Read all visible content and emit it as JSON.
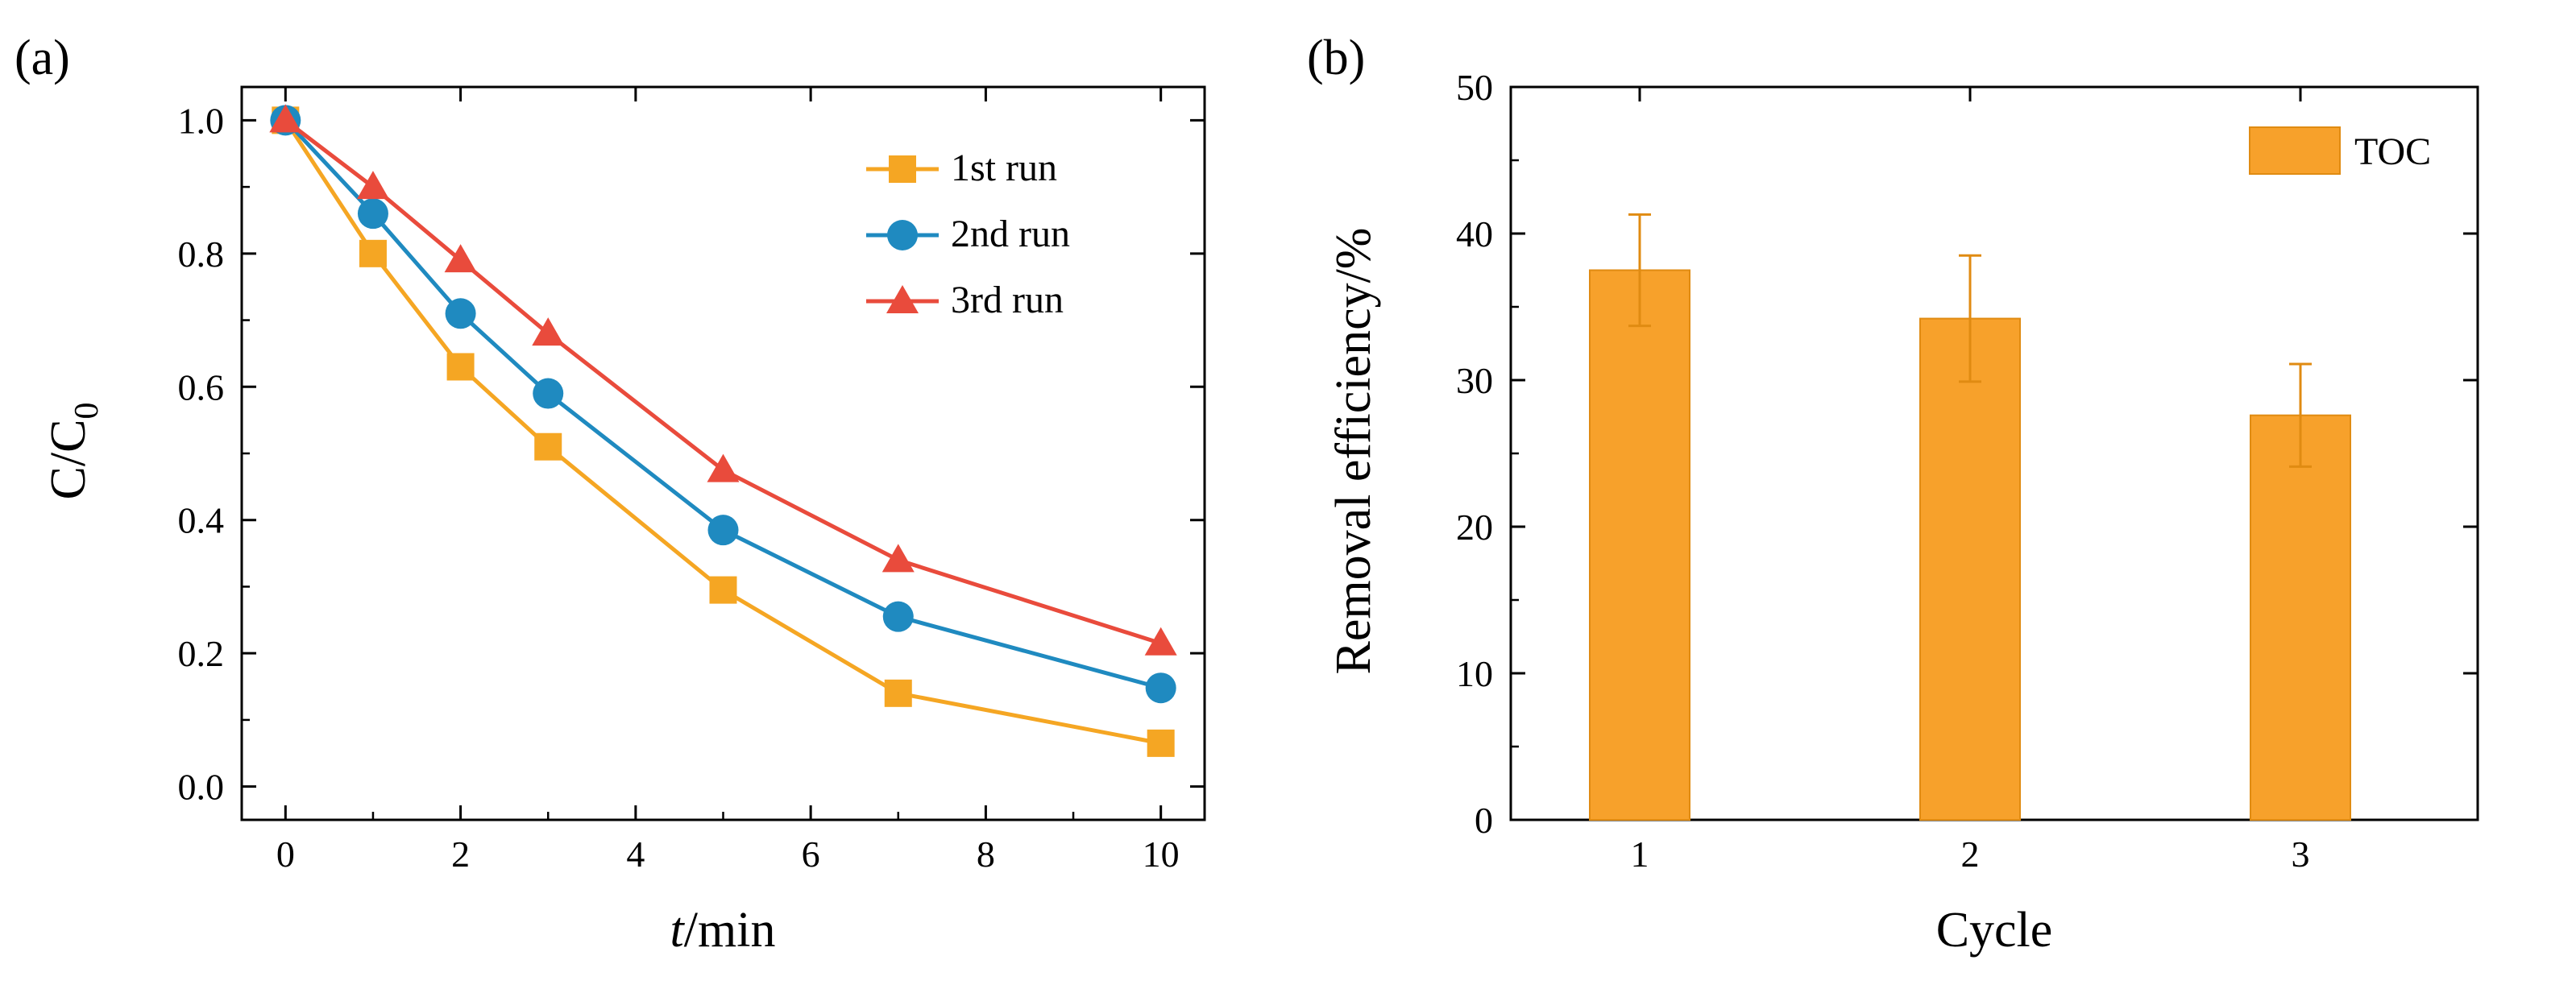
{
  "chart_data": [
    {
      "panel": "(a)",
      "type": "line",
      "xlabel_italic": "t",
      "xlabel_rest": "/min",
      "ylabel_main": "C/C",
      "ylabel_sub": "0",
      "xlim": [
        -0.5,
        10.5
      ],
      "ylim": [
        -0.05,
        1.05
      ],
      "xticks": [
        0,
        2,
        4,
        6,
        8,
        10
      ],
      "yticks": [
        0.0,
        0.2,
        0.4,
        0.6,
        0.8,
        1.0
      ],
      "xtick_labels": [
        "0",
        "2",
        "4",
        "6",
        "8",
        "10"
      ],
      "ytick_labels": [
        "0.0",
        "0.2",
        "0.4",
        "0.6",
        "0.8",
        "1.0"
      ],
      "x": [
        0,
        1,
        2,
        3,
        5,
        7,
        10
      ],
      "series": [
        {
          "name": "1st run",
          "color": "#F5A623",
          "marker": "square",
          "values": [
            1.0,
            0.8,
            0.63,
            0.51,
            0.295,
            0.14,
            0.065
          ]
        },
        {
          "name": "2nd run",
          "color": "#1F8AC0",
          "marker": "circle",
          "values": [
            1.0,
            0.86,
            0.71,
            0.59,
            0.385,
            0.255,
            0.148
          ]
        },
        {
          "name": "3rd run",
          "color": "#E94B3C",
          "marker": "triangle",
          "values": [
            1.0,
            0.9,
            0.79,
            0.68,
            0.475,
            0.34,
            0.215
          ]
        }
      ],
      "legend_position": "top-right"
    },
    {
      "panel": "(b)",
      "type": "bar",
      "xlabel": "Cycle",
      "ylabel": "Removal efficiency/%",
      "categories": [
        "1",
        "2",
        "3"
      ],
      "ylim": [
        0,
        50
      ],
      "yticks": [
        0,
        10,
        20,
        30,
        40,
        50
      ],
      "ytick_labels": [
        "0",
        "10",
        "20",
        "30",
        "40",
        "50"
      ],
      "series": [
        {
          "name": "TOC",
          "color": "#F7A12B",
          "values": [
            37.5,
            34.2,
            27.6
          ],
          "errors": [
            3.8,
            4.3,
            3.5
          ]
        }
      ],
      "legend_position": "top-right"
    }
  ]
}
